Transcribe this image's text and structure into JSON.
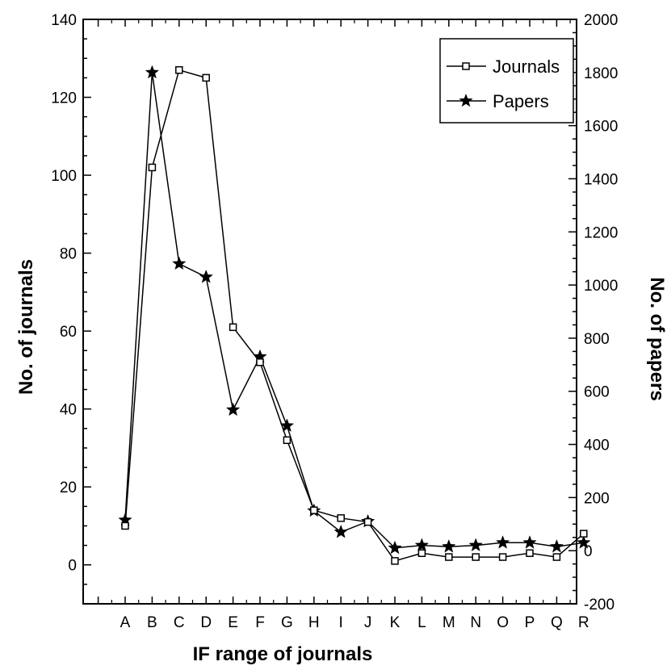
{
  "chart_data": {
    "type": "line",
    "xlabel": "IF range of journals",
    "ylabel_left": "No. of journals",
    "ylabel_right": "No. of papers",
    "ylim_left": [
      -10,
      140
    ],
    "ylim_right": [
      -200,
      2000
    ],
    "yticks_left": [
      0,
      20,
      40,
      60,
      80,
      100,
      120,
      140
    ],
    "yticks_right": [
      -200,
      0,
      200,
      400,
      600,
      800,
      1000,
      1200,
      1400,
      1600,
      1800,
      2000
    ],
    "categories": [
      "A",
      "B",
      "C",
      "D",
      "E",
      "F",
      "G",
      "H",
      "I",
      "J",
      "K",
      "L",
      "M",
      "N",
      "O",
      "P",
      "Q",
      "R"
    ],
    "legend_position": "top-right",
    "grid": false,
    "series": [
      {
        "name": "Journals",
        "axis": "left",
        "marker": "open-square",
        "values": [
          10,
          102,
          127,
          125,
          61,
          52,
          32,
          14,
          12,
          11,
          1,
          3,
          2,
          2,
          2,
          3,
          2,
          8
        ]
      },
      {
        "name": "Papers",
        "axis": "right",
        "marker": "star",
        "values": [
          115,
          1800,
          1080,
          1030,
          530,
          730,
          470,
          150,
          70,
          110,
          10,
          20,
          15,
          20,
          30,
          30,
          15,
          30
        ]
      }
    ]
  }
}
